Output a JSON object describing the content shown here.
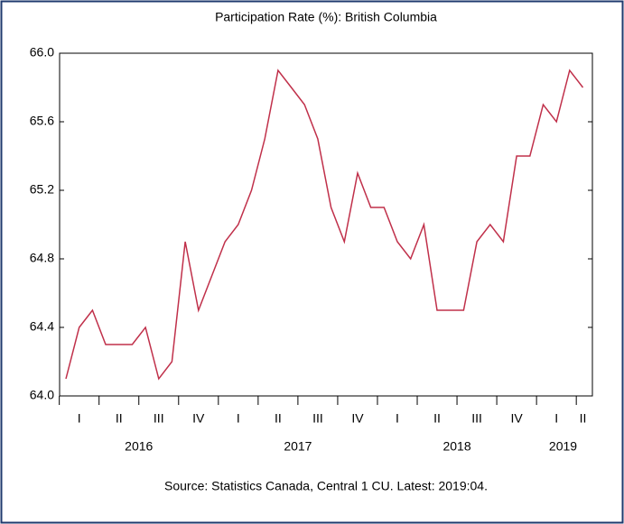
{
  "chart_data": {
    "type": "line",
    "title": "Participation Rate (%): British Columbia",
    "categories": [
      null,
      "I",
      null,
      null,
      "II",
      null,
      null,
      "III",
      null,
      null,
      "IV",
      null,
      null,
      "I",
      null,
      null,
      "II",
      null,
      null,
      "III",
      null,
      null,
      "IV",
      null,
      null,
      "I",
      null,
      null,
      "II",
      null,
      null,
      "III",
      null,
      null,
      "IV",
      null,
      null,
      "I",
      null,
      "II"
    ],
    "years": [
      "2016",
      "2017",
      "2018",
      "2019"
    ],
    "series": [
      {
        "name": "Participation Rate",
        "color": "#c0304a",
        "values": [
          64.1,
          64.4,
          64.5,
          64.3,
          64.3,
          64.3,
          64.4,
          64.1,
          64.2,
          64.9,
          64.5,
          64.7,
          64.9,
          65.0,
          65.2,
          65.5,
          65.9,
          65.8,
          65.7,
          65.5,
          65.1,
          64.9,
          65.3,
          65.1,
          65.1,
          64.9,
          64.8,
          65.0,
          64.5,
          64.5,
          64.5,
          64.9,
          65.0,
          64.9,
          65.4,
          65.4,
          65.7,
          65.6,
          65.9,
          65.8
        ]
      }
    ],
    "ylim": [
      64.0,
      66.0
    ],
    "yticks": [
      {
        "value": 64.0,
        "label": "64.0"
      },
      {
        "value": 64.4,
        "label": "64.4"
      },
      {
        "value": 64.8,
        "label": "64.8"
      },
      {
        "value": 65.2,
        "label": "65.2"
      },
      {
        "value": 65.6,
        "label": "65.6"
      },
      {
        "value": 66.0,
        "label": "66.0"
      }
    ],
    "source": "Source: Statistics Canada, Central 1 CU. Latest: 2019:04."
  }
}
